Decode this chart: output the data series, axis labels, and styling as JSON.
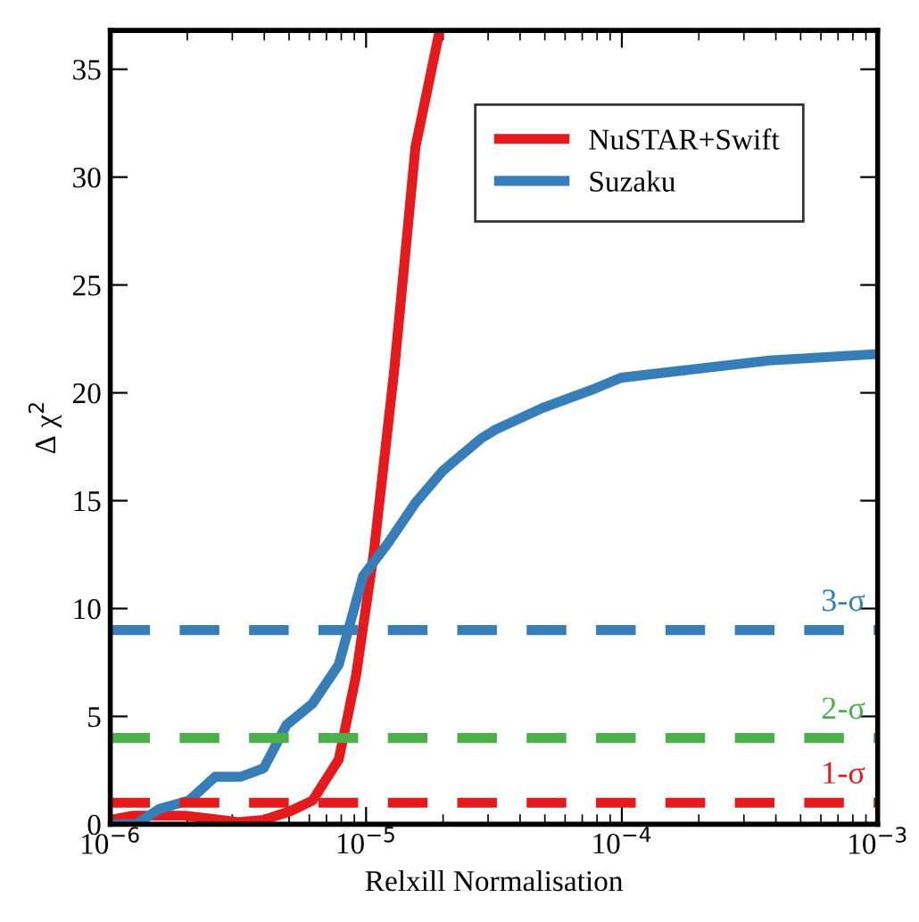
{
  "chart_data": {
    "type": "line",
    "xlabel": "Relxill Normalisation",
    "ylabel": "Δ χ$^{2}$",
    "log": "x",
    "xlim": [
      1e-06,
      0.001
    ],
    "xticks": [
      {
        "value": 1e-06,
        "label": "10$^{−6}$"
      },
      {
        "value": 1e-05,
        "label": "10$^{−5}$"
      },
      {
        "value": 0.0001,
        "label": "10$^{−4}$"
      },
      {
        "value": 0.001,
        "label": "10$^{−3}$"
      }
    ],
    "ylim": [
      0,
      36.8
    ],
    "yticks": [
      0,
      5,
      10,
      15,
      20,
      25,
      30,
      35
    ],
    "grid": false,
    "legend": "top right",
    "line_style": "solid",
    "marker": "none",
    "series": [
      {
        "name": "NuSTAR+Swift",
        "color": "#e41a1c",
        "x": [
          1e-06,
          1.23e-06,
          1.96e-06,
          3.15e-06,
          3.98e-06,
          5.04e-06,
          6.18e-06,
          7.82e-06,
          9.14e-06,
          1.07e-05,
          1.29e-05,
          1.56e-05,
          1.94e-05
        ],
        "values": [
          0.2,
          0.4,
          0.4,
          0.1,
          0.2,
          0.6,
          1.1,
          3.0,
          6.9,
          12.5,
          21.1,
          31.4,
          36.8
        ]
      },
      {
        "name": "Suzaku",
        "color": "#377eb8",
        "x": [
          1e-06,
          1.26e-06,
          1.55e-06,
          2.03e-06,
          2.57e-06,
          3.24e-06,
          3.98e-06,
          4.88e-06,
          6.18e-06,
          7.82e-06,
          9.73e-06,
          1.23e-05,
          1.56e-05,
          2e-05,
          2.83e-05,
          3.21e-05,
          4.9e-05,
          7.86e-05,
          9.93e-05,
          0.000192,
          0.000378,
          0.001
        ],
        "values": [
          0,
          0,
          0.7,
          1.1,
          2.2,
          2.2,
          2.6,
          4.6,
          5.6,
          7.4,
          11.5,
          13.1,
          14.9,
          16.4,
          17.9,
          18.3,
          19.3,
          20.2,
          20.7,
          21.1,
          21.5,
          21.8
        ]
      }
    ],
    "ref_lines": [
      {
        "axis": "y",
        "value": 9,
        "label": "3-σ",
        "color": "#377eb8",
        "line_style": "dashed"
      },
      {
        "axis": "y",
        "value": 4,
        "label": "2-σ",
        "color": "#4daf4a",
        "line_style": "dashed"
      },
      {
        "axis": "y",
        "value": 1,
        "label": "1-σ",
        "color": "#e41a1c",
        "line_style": "dashed"
      }
    ]
  }
}
